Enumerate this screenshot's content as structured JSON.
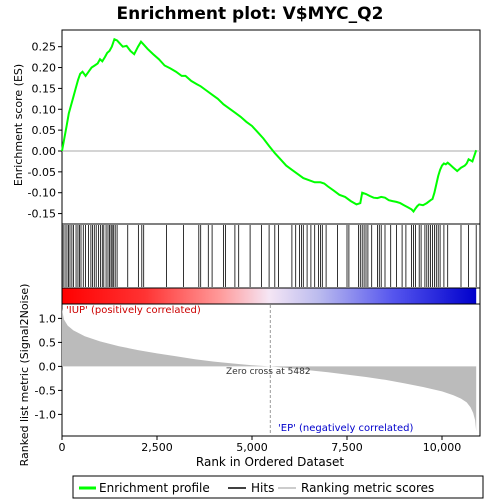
{
  "chart_data": {
    "type": "line",
    "title": "Enrichment plot: V$MYC_Q2",
    "es_panel": {
      "ylabel": "Enrichment score (ES)",
      "ylim": [
        -0.175,
        0.29
      ],
      "yticks": [
        -0.15,
        -0.1,
        -0.05,
        0.0,
        0.05,
        0.1,
        0.15,
        0.2,
        0.25
      ],
      "ytick_labels": [
        "-0.15",
        "-0.10",
        "-0.05",
        "0.00",
        "0.05",
        "0.10",
        "0.15",
        "0.20",
        "0.25"
      ],
      "series": [
        {
          "name": "Enrichment profile",
          "color": "#00ff00",
          "x": [
            0,
            60,
            120,
            180,
            240,
            300,
            360,
            420,
            480,
            540,
            620,
            700,
            780,
            860,
            940,
            1000,
            1060,
            1130,
            1190,
            1250,
            1310,
            1380,
            1450,
            1520,
            1600,
            1700,
            1800,
            1900,
            2000,
            2080,
            2150,
            2250,
            2400,
            2550,
            2700,
            2850,
            3000,
            3150,
            3250,
            3400,
            3550,
            3650,
            3800,
            3950,
            4100,
            4250,
            4400,
            4550,
            4700,
            4850,
            5000,
            5150,
            5300,
            5450,
            5600,
            5750,
            5900,
            6050,
            6200,
            6350,
            6500,
            6650,
            6800,
            6900,
            7000,
            7150,
            7300,
            7450,
            7600,
            7750,
            7850,
            7900,
            8000,
            8100,
            8200,
            8300,
            8400,
            8500,
            8600,
            8700,
            8800,
            8900,
            9000,
            9100,
            9200,
            9250,
            9300,
            9350,
            9400,
            9500,
            9600,
            9700,
            9750,
            9800,
            9850,
            9900,
            9950,
            10000,
            10050,
            10100,
            10150,
            10200,
            10300,
            10400,
            10500,
            10600,
            10650,
            10700,
            10800,
            10900
          ],
          "y": [
            0.0,
            0.03,
            0.06,
            0.09,
            0.11,
            0.13,
            0.15,
            0.17,
            0.185,
            0.19,
            0.18,
            0.19,
            0.2,
            0.205,
            0.21,
            0.22,
            0.215,
            0.225,
            0.235,
            0.24,
            0.25,
            0.268,
            0.265,
            0.258,
            0.25,
            0.252,
            0.24,
            0.232,
            0.25,
            0.262,
            0.255,
            0.245,
            0.232,
            0.22,
            0.205,
            0.198,
            0.19,
            0.18,
            0.18,
            0.168,
            0.16,
            0.155,
            0.145,
            0.135,
            0.125,
            0.112,
            0.102,
            0.092,
            0.082,
            0.07,
            0.06,
            0.045,
            0.03,
            0.012,
            -0.005,
            -0.02,
            -0.035,
            -0.045,
            -0.055,
            -0.065,
            -0.07,
            -0.075,
            -0.075,
            -0.078,
            -0.085,
            -0.095,
            -0.105,
            -0.11,
            -0.12,
            -0.128,
            -0.125,
            -0.1,
            -0.103,
            -0.108,
            -0.112,
            -0.113,
            -0.11,
            -0.112,
            -0.118,
            -0.12,
            -0.122,
            -0.125,
            -0.13,
            -0.135,
            -0.14,
            -0.145,
            -0.138,
            -0.132,
            -0.128,
            -0.13,
            -0.125,
            -0.118,
            -0.115,
            -0.1,
            -0.08,
            -0.06,
            -0.045,
            -0.035,
            -0.03,
            -0.032,
            -0.028,
            -0.032,
            -0.04,
            -0.048,
            -0.04,
            -0.035,
            -0.03,
            -0.02,
            -0.025,
            0.002
          ]
        }
      ]
    },
    "hits": {
      "name": "Hits",
      "x": [
        30,
        80,
        130,
        170,
        210,
        260,
        300,
        370,
        420,
        460,
        500,
        560,
        620,
        700,
        760,
        800,
        850,
        900,
        960,
        1010,
        1060,
        1100,
        1160,
        1210,
        1250,
        1290,
        1320,
        1360,
        1400,
        1450,
        1730,
        2010,
        2100,
        2150,
        2750,
        3200,
        3600,
        3650,
        3850,
        3950,
        4250,
        4300,
        4550,
        4650,
        4950,
        5250,
        5450,
        5600,
        5700,
        6050,
        6150,
        6250,
        6300,
        6350,
        6450,
        6550,
        6650,
        6750,
        6800,
        6850,
        6950,
        7250,
        7500,
        7550,
        7800,
        7850,
        7900,
        7950,
        8000,
        8050,
        8150,
        8300,
        8350,
        8400,
        8500,
        8650,
        8800,
        8950,
        9050,
        9200,
        9250,
        9300,
        9400,
        9450,
        9550,
        9600,
        9650,
        9700,
        9750,
        9800,
        9850,
        9900,
        9950,
        10050,
        10150,
        10500,
        10700,
        10900
      ]
    },
    "rank_panel": {
      "xlabel": "Rank in Ordered Dataset",
      "ylabel": "Ranked list metric (Signal2Noise)",
      "xlim": [
        0,
        11000
      ],
      "ylim": [
        -1.45,
        1.3
      ],
      "xticks": [
        0,
        2500,
        5000,
        7500,
        10000
      ],
      "xtick_labels": [
        "0",
        "2,500",
        "5,000",
        "7,500",
        "10,000"
      ],
      "yticks": [
        -1.0,
        -0.5,
        0.0,
        0.5,
        1.0
      ],
      "ytick_labels": [
        "-1.0",
        "-0.5",
        "0.0",
        "0.5",
        "1.0"
      ],
      "zero_cross": 5482,
      "n": 10900,
      "profile_ranks": [
        0,
        50,
        150,
        300,
        600,
        1000,
        1500,
        2000,
        2500,
        3000,
        3500,
        4000,
        4500,
        5000,
        5482,
        6000,
        6500,
        7000,
        7500,
        8000,
        8500,
        9000,
        9500,
        10000,
        10300,
        10500,
        10650,
        10750,
        10820,
        10870,
        10900
      ],
      "profile_values": [
        1.2,
        0.98,
        0.85,
        0.75,
        0.63,
        0.52,
        0.42,
        0.34,
        0.27,
        0.21,
        0.15,
        0.1,
        0.06,
        0.025,
        0.0,
        -0.04,
        -0.08,
        -0.12,
        -0.17,
        -0.22,
        -0.28,
        -0.35,
        -0.43,
        -0.52,
        -0.6,
        -0.67,
        -0.75,
        -0.85,
        -0.97,
        -1.12,
        -1.35
      ]
    },
    "annotations": {
      "positive": "'IUP' (positively correlated)",
      "negative": "'EP' (negatively correlated)",
      "zero_cross": "Zero cross at 5482"
    },
    "legend": {
      "position": "bottom",
      "items": [
        {
          "label": "Enrichment profile",
          "color": "#00ff00"
        },
        {
          "label": "Hits",
          "color": "#000000"
        },
        {
          "label": "Ranking metric scores",
          "color": "#bbbbbb"
        }
      ]
    },
    "colors": {
      "profile": "#00ff00",
      "positive_text": "#cc0000",
      "negative_text": "#0000cc",
      "metric_fill": "#bbbbbb",
      "zero_line": "#999999"
    }
  }
}
